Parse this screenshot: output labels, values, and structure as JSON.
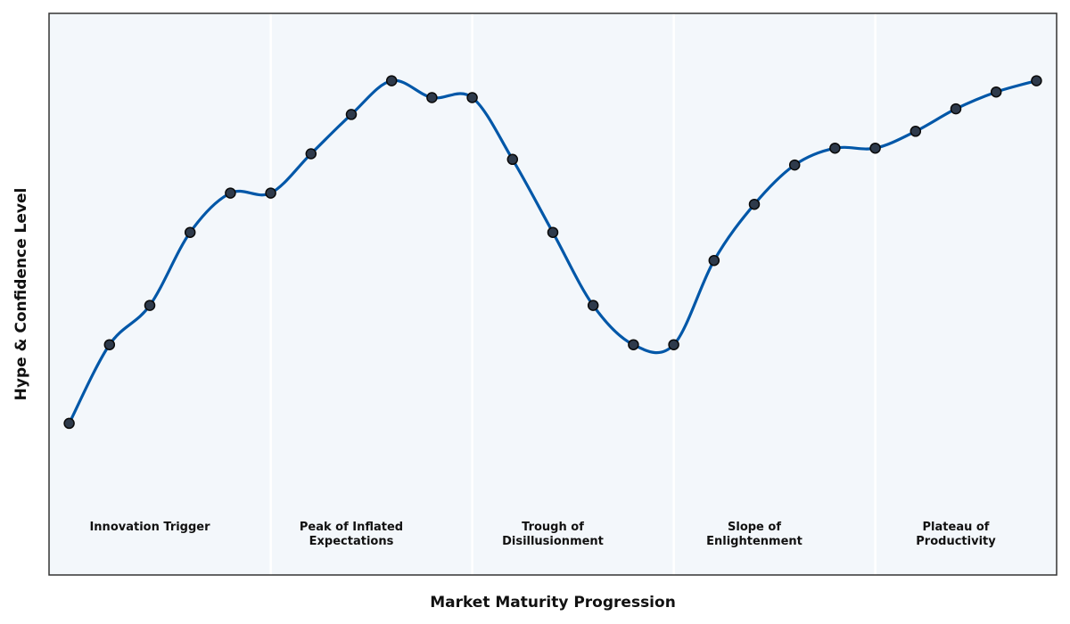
{
  "chart_data": {
    "type": "line",
    "title": "",
    "xlabel": "Market Maturity Progression",
    "ylabel": "Hype & Confidence Level",
    "x": [
      1,
      2,
      3,
      4,
      5,
      6,
      7,
      8,
      9,
      10,
      11,
      12,
      13,
      14,
      15,
      16,
      17,
      18,
      19,
      20,
      21,
      22,
      23,
      24,
      25
    ],
    "xlim": [
      0.5,
      25.5
    ],
    "ylim": [
      0,
      100
    ],
    "series": [
      {
        "values": [
          27,
          41,
          48,
          61,
          68,
          68,
          75,
          82,
          88,
          85,
          85,
          74,
          61,
          48,
          41,
          41,
          56,
          66,
          73,
          76,
          76,
          79,
          83,
          86,
          88
        ]
      }
    ],
    "phases": [
      {
        "label": [
          "Innovation Trigger"
        ],
        "x_center": 3
      },
      {
        "label": [
          "Peak of Inflated",
          "Expectations"
        ],
        "x_center": 8
      },
      {
        "label": [
          "Trough of",
          "Disillusionment"
        ],
        "x_center": 13
      },
      {
        "label": [
          "Slope of",
          "Enlightenment"
        ],
        "x_center": 18
      },
      {
        "label": [
          "Plateau of",
          "Productivity"
        ],
        "x_center": 23
      }
    ],
    "phase_boundaries": [
      6,
      11,
      16,
      21
    ],
    "grid": false,
    "legend": "none",
    "colors": {
      "line": "#0057a8",
      "marker_fill": "#2e3a4b",
      "marker_edge": "#0a0a0a",
      "plot_bg": "#f3f7fb",
      "separator": "#ffffff",
      "frame": "#333333"
    }
  }
}
